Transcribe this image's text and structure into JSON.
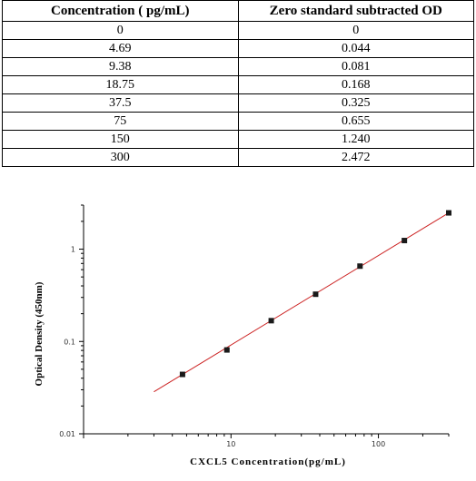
{
  "table": {
    "headers": [
      "Concentration ( pg/mL)",
      "Zero standard subtracted OD"
    ],
    "rows": [
      [
        "0",
        "0"
      ],
      [
        "4.69",
        "0.044"
      ],
      [
        "9.38",
        "0.081"
      ],
      [
        "18.75",
        "0.168"
      ],
      [
        "37.5",
        "0.325"
      ],
      [
        "75",
        "0.655"
      ],
      [
        "150",
        "1.240"
      ],
      [
        "300",
        "2.472"
      ]
    ]
  },
  "chart_data": {
    "type": "scatter",
    "x_scale": "log",
    "y_scale": "log",
    "xlabel": "CXCL5  Concentration(pg/mL)",
    "ylabel": "Optical Density (450nm)",
    "x_ticks": [
      "10",
      "100"
    ],
    "y_ticks": [
      "0.01",
      "0.1",
      "1"
    ],
    "xlim": [
      1,
      300
    ],
    "ylim": [
      0.01,
      3
    ],
    "points": [
      {
        "x": 4.69,
        "y": 0.044
      },
      {
        "x": 9.38,
        "y": 0.081
      },
      {
        "x": 18.75,
        "y": 0.168
      },
      {
        "x": 37.5,
        "y": 0.325
      },
      {
        "x": 75,
        "y": 0.655
      },
      {
        "x": 150,
        "y": 1.24
      },
      {
        "x": 300,
        "y": 2.472
      }
    ],
    "fit_line": {
      "x_start": 3,
      "x_end": 300,
      "y_start": 0.0285,
      "y_end": 2.472
    },
    "marker_color": "#1a1a1a",
    "line_color": "#cc2222",
    "grid": false
  }
}
